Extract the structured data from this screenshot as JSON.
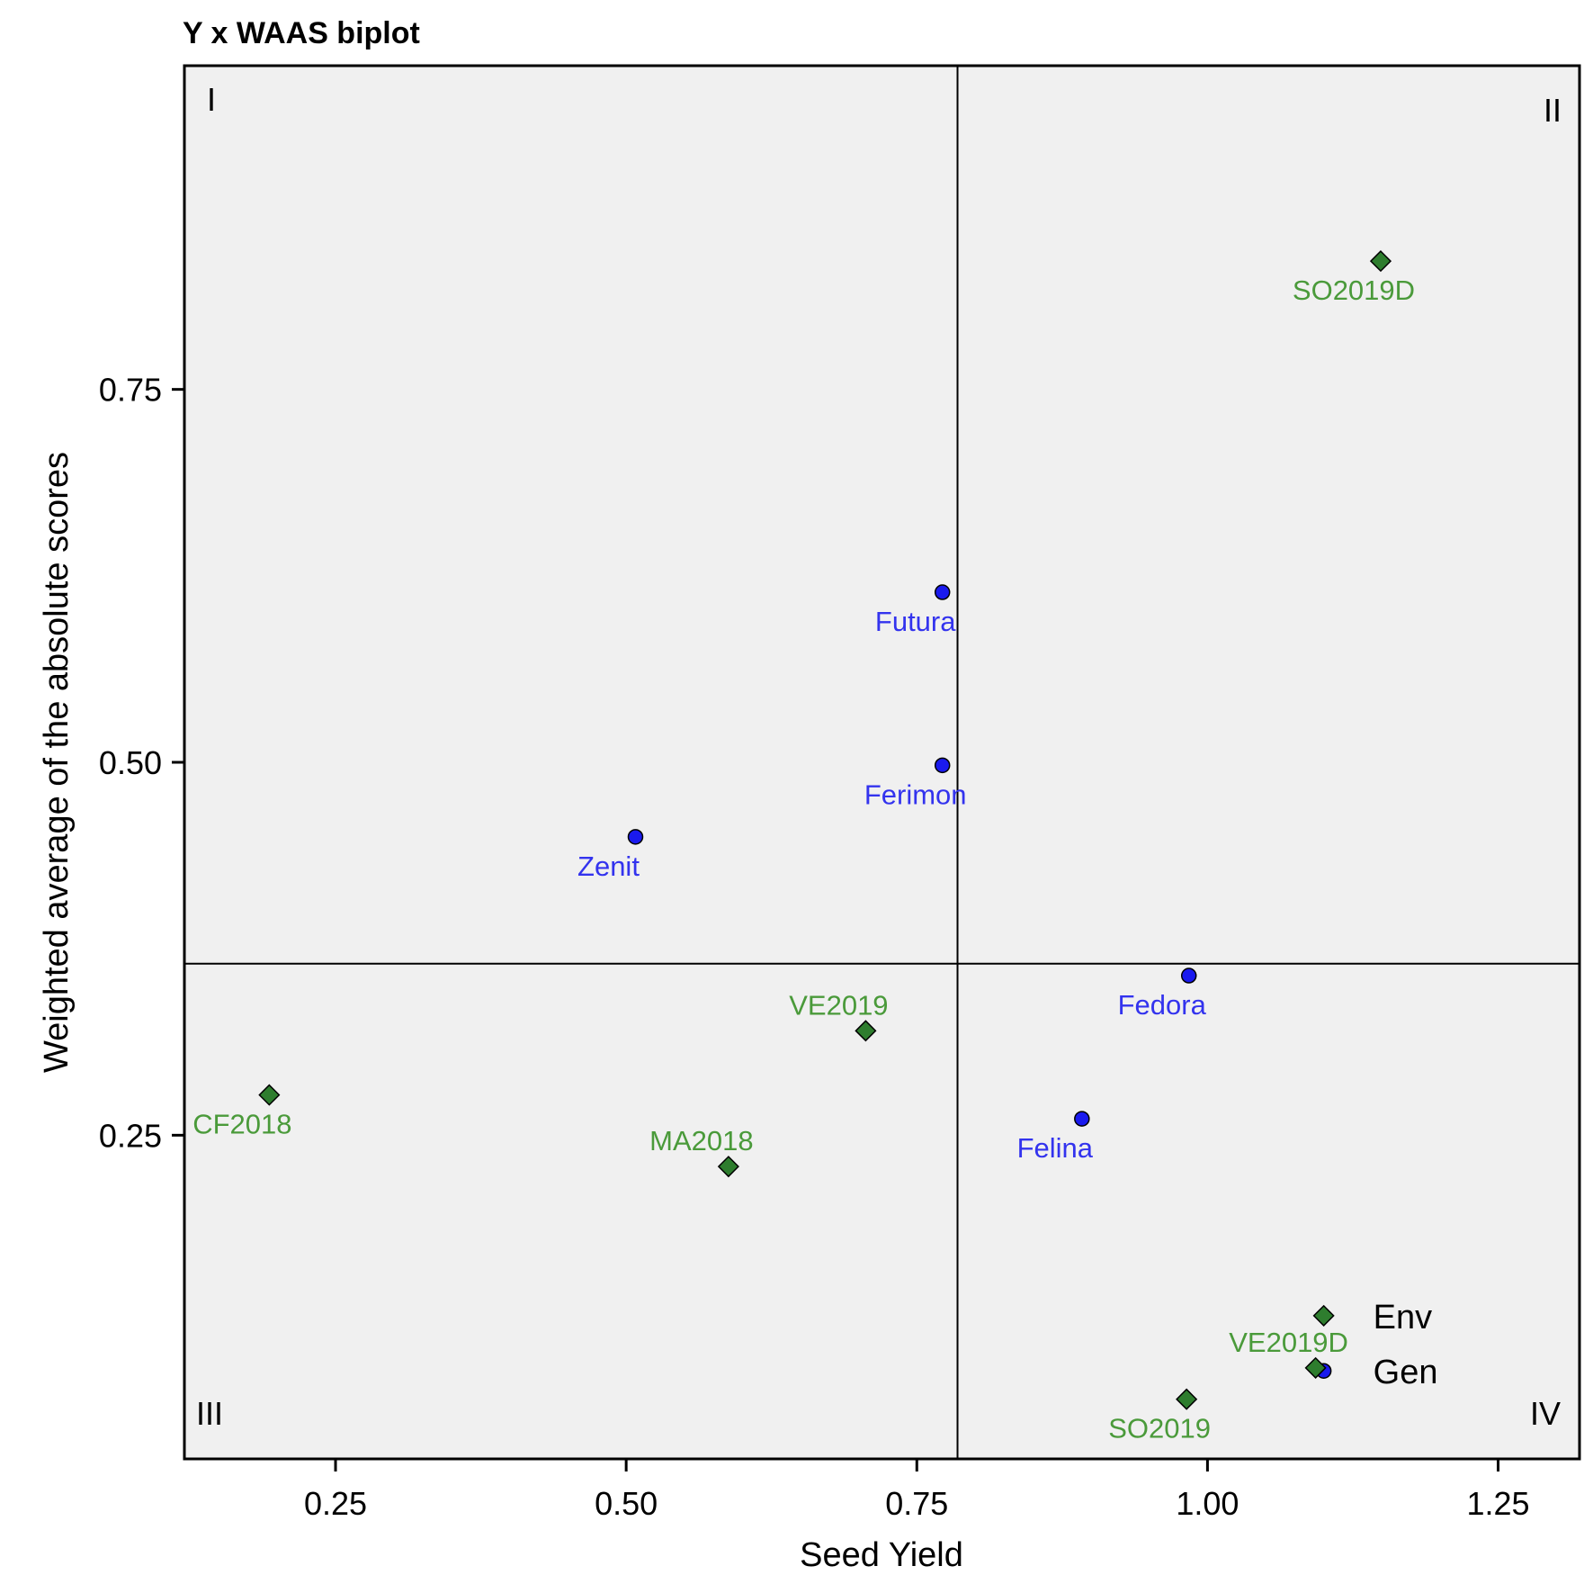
{
  "chart_data": {
    "type": "scatter",
    "title": "Y x WAAS biplot",
    "xlabel": "Seed Yield",
    "ylabel": "Weighted average of the absolute scores",
    "xlim": [
      0.12,
      1.32
    ],
    "ylim": [
      0.033,
      0.967
    ],
    "xticks": [
      {
        "value": 0.25,
        "label": "0.25"
      },
      {
        "value": 0.5,
        "label": "0.50"
      },
      {
        "value": 0.75,
        "label": "0.75"
      },
      {
        "value": 1.0,
        "label": "1.00"
      },
      {
        "value": 1.25,
        "label": "1.25"
      }
    ],
    "yticks": [
      {
        "value": 0.25,
        "label": "0.25"
      },
      {
        "value": 0.5,
        "label": "0.50"
      },
      {
        "value": 0.75,
        "label": "0.75"
      }
    ],
    "reference_lines": {
      "x": 0.785,
      "y": 0.365
    },
    "quadrant_labels": [
      {
        "label": "I",
        "position": "top-left"
      },
      {
        "label": "II",
        "position": "top-right"
      },
      {
        "label": "III",
        "position": "bottom-left"
      },
      {
        "label": "IV",
        "position": "bottom-right"
      }
    ],
    "colors": {
      "Gen": "#1a1aee",
      "Env": "#2e7d2e",
      "Gen_text": "#3333ee",
      "Env_text": "#4a9a3a",
      "panel_bg": "#f0f0f0"
    },
    "series": [
      {
        "name": "Gen",
        "marker": "circle",
        "points": [
          {
            "label": "Futura",
            "x": 0.772,
            "y": 0.614
          },
          {
            "label": "Ferimon",
            "x": 0.772,
            "y": 0.498
          },
          {
            "label": "Zenit",
            "x": 0.508,
            "y": 0.45
          },
          {
            "label": "Fedora",
            "x": 0.984,
            "y": 0.357
          },
          {
            "label": "Felina",
            "x": 0.892,
            "y": 0.261
          },
          {
            "label": "",
            "x": 1.1,
            "y": 0.092
          }
        ]
      },
      {
        "name": "Env",
        "marker": "diamond",
        "points": [
          {
            "label": "SO2019D",
            "x": 1.149,
            "y": 0.836
          },
          {
            "label": "VE2019",
            "x": 0.706,
            "y": 0.32
          },
          {
            "label": "CF2018",
            "x": 0.193,
            "y": 0.277
          },
          {
            "label": "MA2018",
            "x": 0.588,
            "y": 0.229
          },
          {
            "label": "",
            "x": 1.1,
            "y": 0.129
          },
          {
            "label": "VE2019D",
            "x": 1.093,
            "y": 0.094
          },
          {
            "label": "SO2019",
            "x": 0.982,
            "y": 0.073
          }
        ]
      }
    ],
    "legend": [
      {
        "name": "Env",
        "marker": "diamond"
      },
      {
        "name": "Gen",
        "marker": "circle"
      }
    ]
  }
}
